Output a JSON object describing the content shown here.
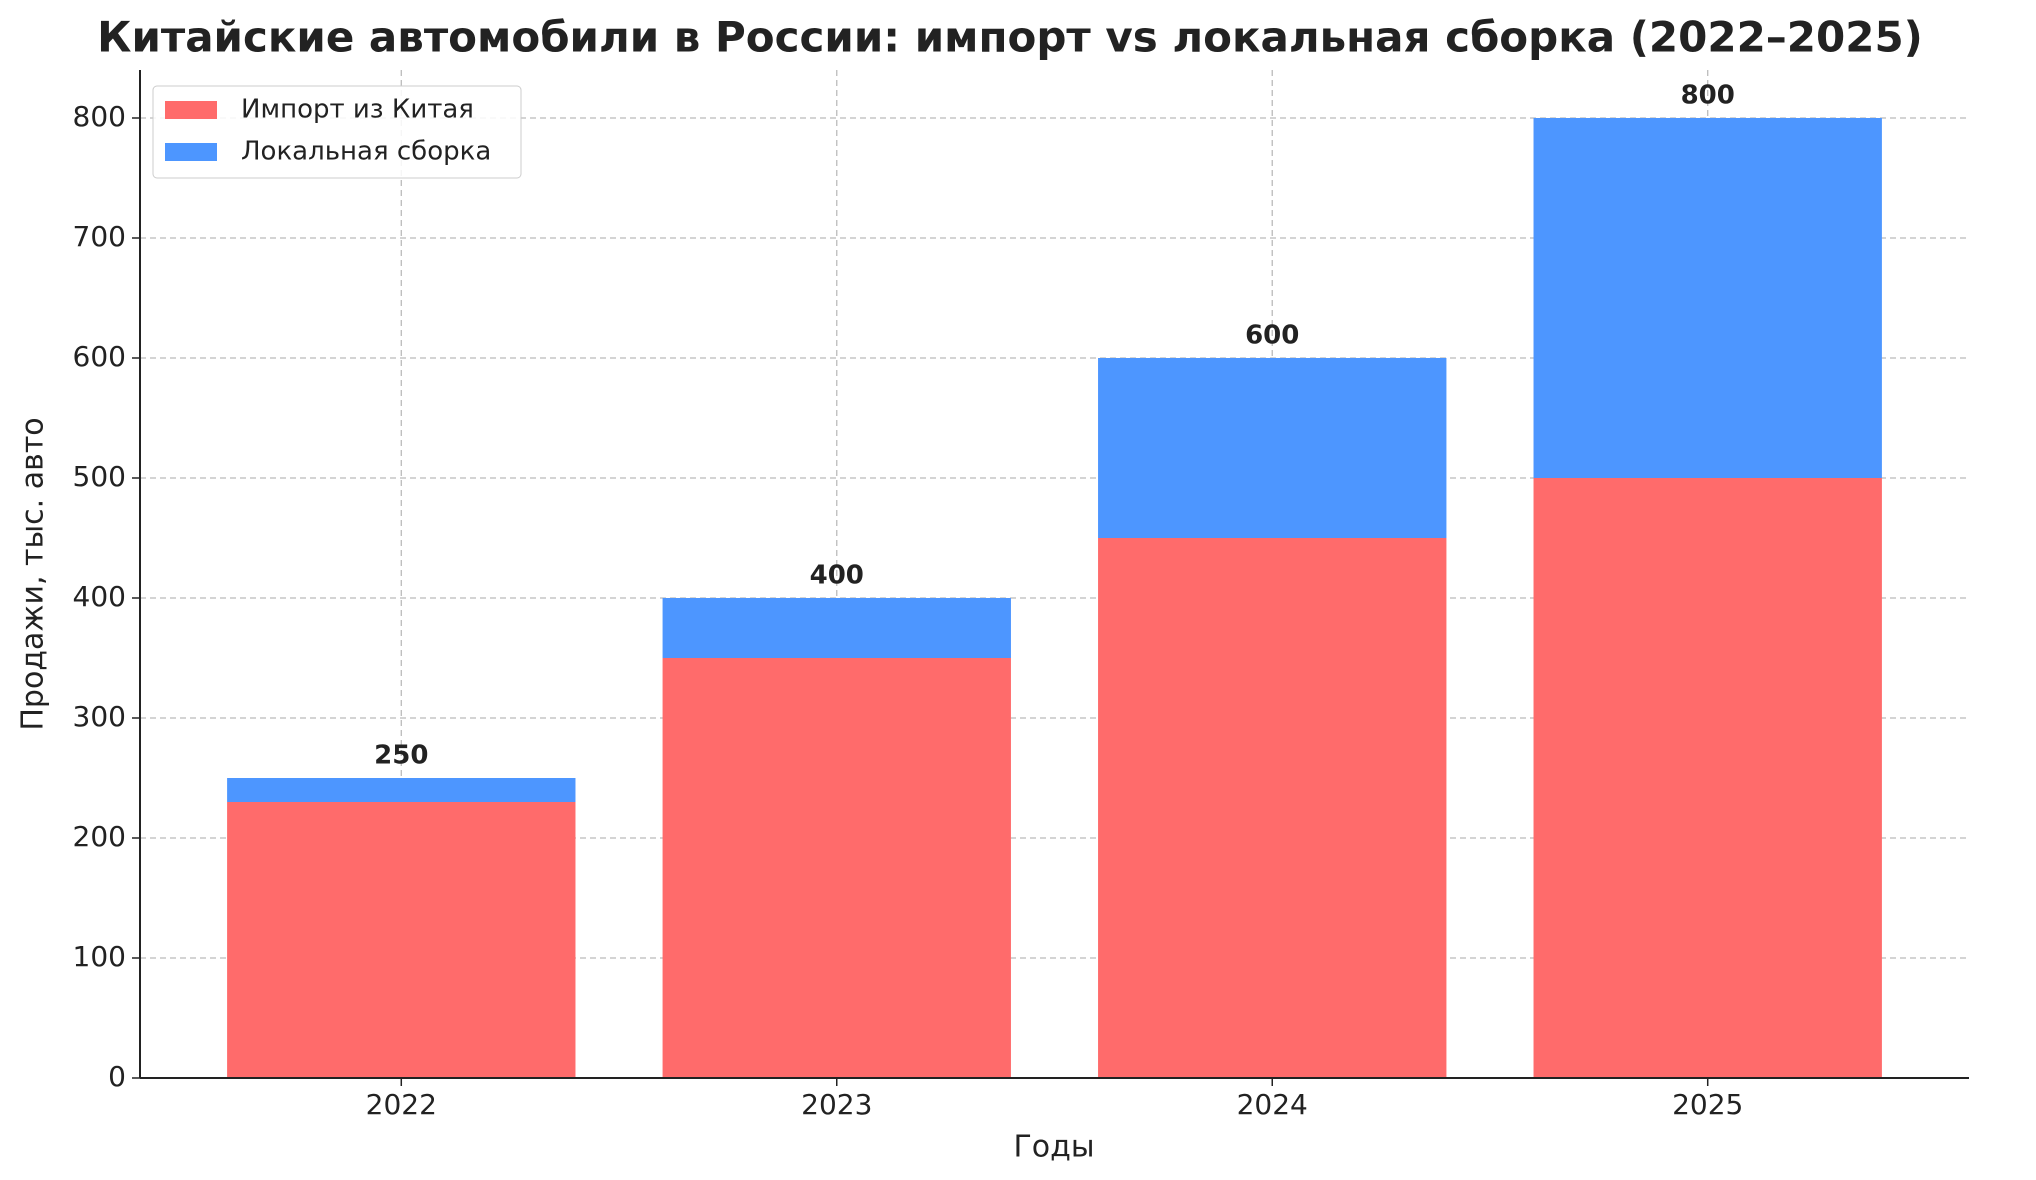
{
  "chart_data": {
    "type": "stacked_bar",
    "title": "Китайские автомобили в России: импорт vs локальная сборка (2022–2025)",
    "x_label": "Годы",
    "y_label": "Продажи, тыс. авто",
    "categories": [
      "2022",
      "2023",
      "2024",
      "2025"
    ],
    "series": [
      {
        "name": "Импорт из Китая",
        "color": "#ff6b6b",
        "values": [
          230,
          350,
          450,
          500
        ]
      },
      {
        "name": "Локальная сборка",
        "color": "#4d96ff",
        "values": [
          20,
          50,
          150,
          300
        ]
      }
    ],
    "totals": [
      250,
      400,
      600,
      800
    ],
    "ylim": [
      0,
      840
    ],
    "yticks": [
      0,
      100,
      200,
      300,
      400,
      500,
      600,
      700,
      800
    ],
    "grid": true,
    "legend": "upper left"
  }
}
